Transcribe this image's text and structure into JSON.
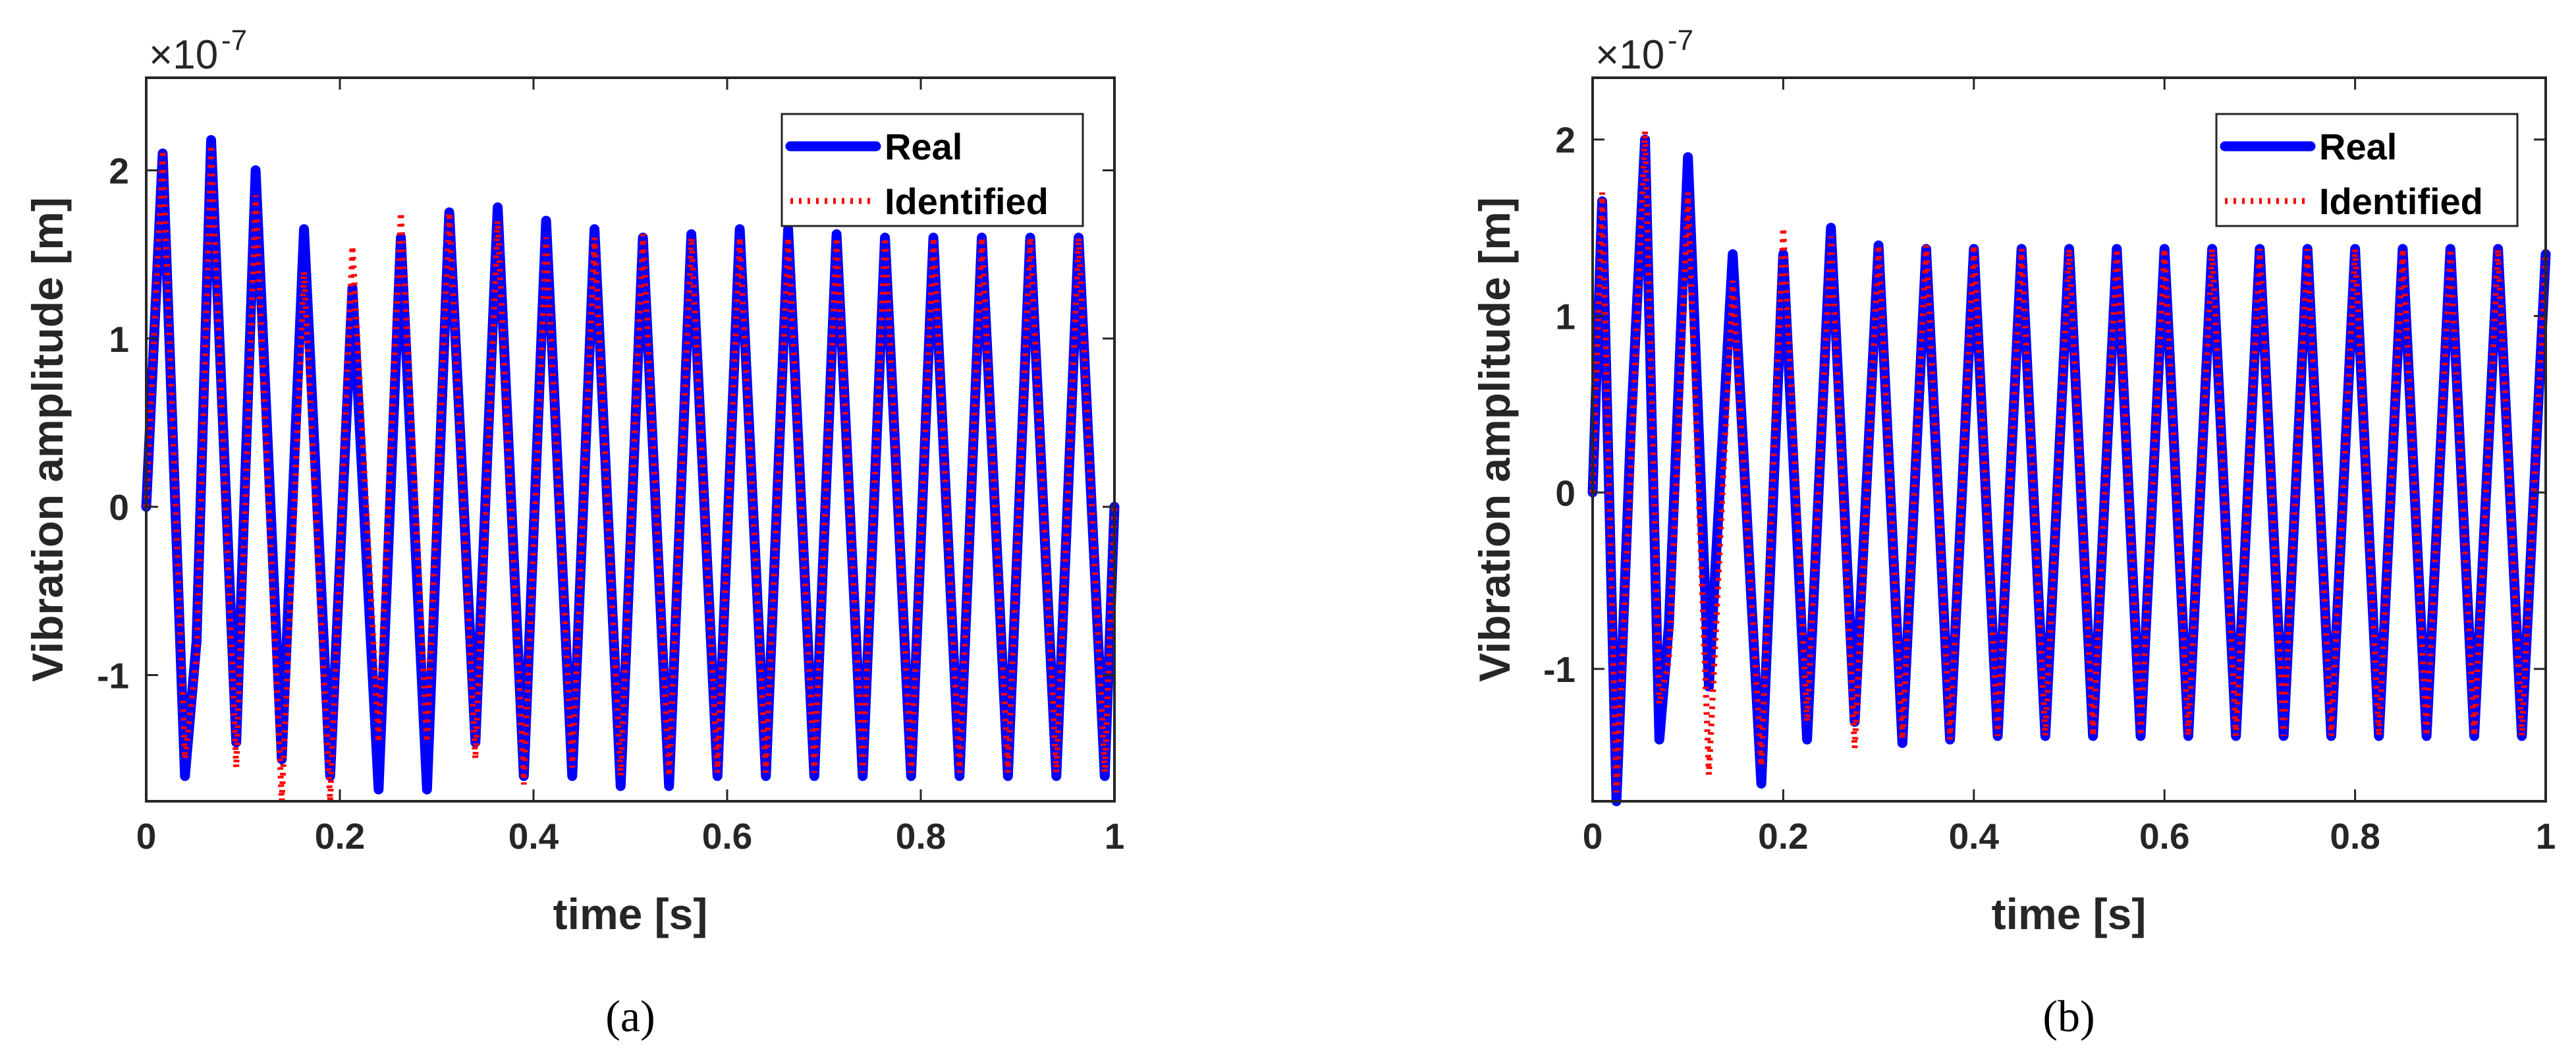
{
  "colors": {
    "real": "#0000ff",
    "identified": "#ff0000",
    "axes": "#262626"
  },
  "chart_data": [
    {
      "panel": "(a)",
      "type": "line",
      "xlabel": "time [s]",
      "ylabel": "Vibration amplitude [m]",
      "y_multiplier": "×10",
      "y_exponent": "-7",
      "xlim": [
        0,
        1
      ],
      "ylim": [
        -1.75,
        2.55
      ],
      "x_ticks": [
        0,
        0.2,
        0.4,
        0.6,
        0.8,
        1
      ],
      "x_tick_labels": [
        "0",
        "0.2",
        "0.4",
        "0.6",
        "0.8",
        "1"
      ],
      "y_ticks": [
        -1,
        0,
        1,
        2
      ],
      "y_tick_labels": [
        "-1",
        "0",
        "1",
        "2"
      ],
      "legend": [
        "Real",
        "Identified"
      ],
      "legend_position": "top-right",
      "series": [
        {
          "name": "Real",
          "style": "solid",
          "x": [
            0,
            0.017,
            0.04,
            0.052,
            0.067,
            0.093,
            0.113,
            0.14,
            0.163,
            0.19,
            0.213,
            0.24,
            0.263,
            0.29,
            0.313,
            0.34,
            0.363,
            0.39,
            0.413,
            0.44,
            0.463,
            0.49,
            0.513,
            0.54,
            0.563,
            0.59,
            0.613,
            0.64,
            0.663,
            0.69,
            0.713,
            0.74,
            0.763,
            0.79,
            0.813,
            0.84,
            0.863,
            0.89,
            0.913,
            0.94,
            0.963,
            0.99,
            1.0
          ],
          "values": [
            0,
            2.1,
            -1.6,
            -0.8,
            2.18,
            -1.4,
            2.0,
            -1.5,
            1.65,
            -1.6,
            1.3,
            -1.68,
            1.6,
            -1.68,
            1.75,
            -1.4,
            1.78,
            -1.6,
            1.7,
            -1.6,
            1.65,
            -1.66,
            1.6,
            -1.66,
            1.62,
            -1.6,
            1.65,
            -1.6,
            1.65,
            -1.6,
            1.62,
            -1.6,
            1.6,
            -1.6,
            1.6,
            -1.6,
            1.6,
            -1.6,
            1.6,
            -1.6,
            1.6,
            -1.6,
            0
          ]
        },
        {
          "name": "Identified",
          "style": "dotted",
          "x": [
            0,
            0.017,
            0.04,
            0.052,
            0.067,
            0.093,
            0.113,
            0.14,
            0.163,
            0.19,
            0.213,
            0.24,
            0.263,
            0.29,
            0.313,
            0.34,
            0.363,
            0.39,
            0.413,
            0.44,
            0.463,
            0.49,
            0.513,
            0.54,
            0.563,
            0.59,
            0.613,
            0.64,
            0.663,
            0.69,
            0.713,
            0.74,
            0.763,
            0.79,
            0.813,
            0.84,
            0.863,
            0.89,
            0.913,
            0.94,
            0.963,
            0.99,
            1.0
          ],
          "values": [
            0,
            2.12,
            -1.5,
            -0.9,
            2.15,
            -1.55,
            1.85,
            -1.75,
            1.4,
            -1.75,
            1.55,
            -1.4,
            1.75,
            -1.4,
            1.75,
            -1.5,
            1.7,
            -1.65,
            1.6,
            -1.55,
            1.6,
            -1.6,
            1.62,
            -1.6,
            1.6,
            -1.58,
            1.6,
            -1.58,
            1.6,
            -1.58,
            1.6,
            -1.58,
            1.6,
            -1.58,
            1.6,
            -1.58,
            1.6,
            -1.58,
            1.6,
            -1.58,
            1.6,
            -1.58,
            0
          ]
        }
      ]
    },
    {
      "panel": "(b)",
      "type": "line",
      "xlabel": "time [s]",
      "ylabel": "Vibration amplitude [m]",
      "y_multiplier": "×10",
      "y_exponent": "-7",
      "xlim": [
        0,
        1
      ],
      "ylim": [
        -1.75,
        2.35
      ],
      "x_ticks": [
        0,
        0.2,
        0.4,
        0.6,
        0.8,
        1
      ],
      "x_tick_labels": [
        "0",
        "0.2",
        "0.4",
        "0.6",
        "0.8",
        "1"
      ],
      "y_ticks": [
        -1,
        0,
        1,
        2
      ],
      "y_tick_labels": [
        "-1",
        "0",
        "1",
        "2"
      ],
      "legend": [
        "Real",
        "Identified"
      ],
      "legend_position": "top-right",
      "series": [
        {
          "name": "Real",
          "style": "solid",
          "x": [
            0,
            0.01,
            0.025,
            0.04,
            0.055,
            0.07,
            0.08,
            0.1,
            0.122,
            0.147,
            0.177,
            0.2,
            0.225,
            0.25,
            0.275,
            0.3,
            0.325,
            0.35,
            0.375,
            0.4,
            0.425,
            0.45,
            0.475,
            0.5,
            0.525,
            0.55,
            0.575,
            0.6,
            0.625,
            0.65,
            0.675,
            0.7,
            0.725,
            0.75,
            0.775,
            0.8,
            0.825,
            0.85,
            0.875,
            0.9,
            0.925,
            0.95,
            0.975,
            1.0
          ],
          "values": [
            0,
            1.65,
            -1.75,
            0.35,
            2.0,
            -1.4,
            -0.75,
            1.9,
            -1.1,
            1.35,
            -1.65,
            1.35,
            -1.4,
            1.5,
            -1.3,
            1.4,
            -1.42,
            1.38,
            -1.4,
            1.38,
            -1.38,
            1.38,
            -1.38,
            1.38,
            -1.38,
            1.38,
            -1.38,
            1.38,
            -1.38,
            1.38,
            -1.38,
            1.38,
            -1.38,
            1.38,
            -1.38,
            1.38,
            -1.38,
            1.38,
            -1.38,
            1.38,
            -1.38,
            1.38,
            -1.38,
            1.35
          ]
        },
        {
          "name": "Identified",
          "style": "dotted",
          "x": [
            0,
            0.01,
            0.025,
            0.04,
            0.055,
            0.07,
            0.08,
            0.1,
            0.122,
            0.147,
            0.177,
            0.2,
            0.225,
            0.25,
            0.275,
            0.3,
            0.325,
            0.35,
            0.375,
            0.4,
            0.425,
            0.45,
            0.475,
            0.5,
            0.525,
            0.55,
            0.575,
            0.6,
            0.625,
            0.65,
            0.675,
            0.7,
            0.725,
            0.75,
            0.775,
            0.8,
            0.825,
            0.85,
            0.875,
            0.9,
            0.925,
            0.95,
            0.975,
            1.0
          ],
          "values": [
            0,
            1.7,
            -1.7,
            0.15,
            2.05,
            -1.2,
            -0.95,
            1.7,
            -1.6,
            1.2,
            -1.55,
            1.5,
            -1.3,
            1.45,
            -1.45,
            1.4,
            -1.4,
            1.4,
            -1.4,
            1.4,
            -1.38,
            1.38,
            -1.38,
            1.38,
            -1.38,
            1.38,
            -1.38,
            1.38,
            -1.38,
            1.38,
            -1.38,
            1.38,
            -1.38,
            1.38,
            -1.38,
            1.38,
            -1.38,
            1.38,
            -1.38,
            1.38,
            -1.38,
            1.38,
            -1.38,
            1.35
          ]
        }
      ]
    }
  ]
}
